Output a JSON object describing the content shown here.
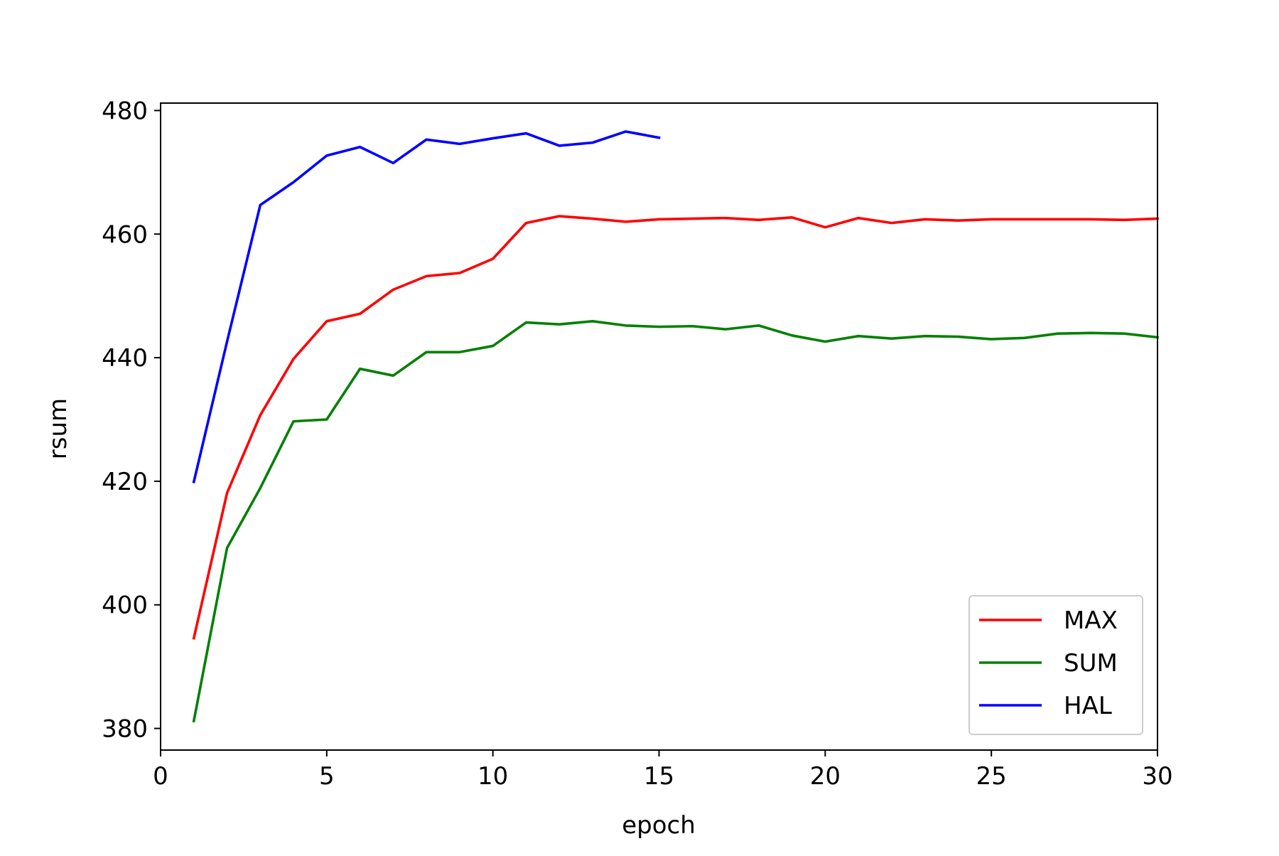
{
  "chart_data": {
    "type": "line",
    "title": "",
    "xlabel": "epoch",
    "ylabel": "rsum",
    "xlim": [
      0,
      30
    ],
    "ylim": [
      376.5,
      481.2
    ],
    "xticks": [
      0,
      5,
      10,
      15,
      20,
      25,
      30
    ],
    "yticks": [
      380,
      400,
      420,
      440,
      460,
      480
    ],
    "grid": false,
    "legend_position": "lower-right",
    "series": [
      {
        "name": "MAX",
        "color": "#ff0000",
        "x": [
          1,
          2,
          3,
          4,
          5,
          6,
          7,
          8,
          9,
          10,
          11,
          12,
          13,
          14,
          15,
          16,
          17,
          18,
          19,
          20,
          21,
          22,
          23,
          24,
          25,
          26,
          27,
          28,
          29,
          30
        ],
        "values": [
          394.6,
          418.1,
          430.7,
          439.8,
          445.9,
          447.1,
          451.0,
          453.2,
          453.7,
          456.0,
          461.8,
          462.9,
          462.5,
          462.0,
          462.4,
          462.5,
          462.6,
          462.3,
          462.7,
          461.1,
          462.6,
          461.8,
          462.4,
          462.2,
          462.4,
          462.4,
          462.4,
          462.4,
          462.3,
          462.5
        ]
      },
      {
        "name": "SUM",
        "color": "#008000",
        "x": [
          1,
          2,
          3,
          4,
          5,
          6,
          7,
          8,
          9,
          10,
          11,
          12,
          13,
          14,
          15,
          16,
          17,
          18,
          19,
          20,
          21,
          22,
          23,
          24,
          25,
          26,
          27,
          28,
          29,
          30
        ],
        "values": [
          381.2,
          409.2,
          418.9,
          429.7,
          430.0,
          438.2,
          437.1,
          440.9,
          440.9,
          441.9,
          445.7,
          445.4,
          445.9,
          445.2,
          445.0,
          445.1,
          444.6,
          445.2,
          443.6,
          442.6,
          443.5,
          443.1,
          443.5,
          443.4,
          443.0,
          443.2,
          443.9,
          444.0,
          443.9,
          443.3
        ]
      },
      {
        "name": "HAL",
        "color": "#0000ff",
        "x": [
          1,
          2,
          3,
          4,
          5,
          6,
          7,
          8,
          9,
          10,
          11,
          12,
          13,
          14,
          15
        ],
        "values": [
          419.9,
          442.6,
          464.7,
          468.4,
          472.7,
          474.1,
          471.5,
          475.3,
          474.6,
          475.5,
          476.3,
          474.3,
          474.8,
          476.6,
          475.6
        ]
      }
    ]
  }
}
